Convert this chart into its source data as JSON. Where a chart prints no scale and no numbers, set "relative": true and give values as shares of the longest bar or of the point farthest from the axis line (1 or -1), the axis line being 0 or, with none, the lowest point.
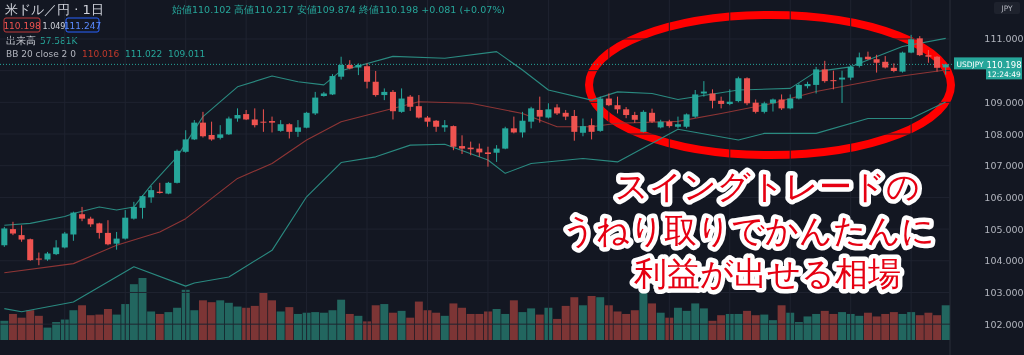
{
  "chart_data": [
    {
      "type": "candlestick",
      "title": "米ドル／円 · 1日",
      "categories": [
        null,
        null,
        null,
        null,
        null,
        null,
        null,
        null,
        null,
        null,
        null,
        null,
        null,
        null,
        null,
        null,
        null,
        null,
        null,
        null,
        null,
        null,
        null,
        null,
        null,
        null,
        null,
        null,
        null,
        null,
        null,
        null,
        null,
        null,
        null,
        null,
        null,
        null,
        null,
        null,
        null,
        null,
        null,
        null,
        null,
        null,
        null,
        null,
        null,
        null,
        null,
        null,
        null,
        null,
        null,
        null,
        null,
        null,
        null,
        null,
        null,
        null,
        null,
        null,
        null,
        null,
        null,
        null,
        null,
        null,
        null,
        null,
        null,
        null,
        null,
        null,
        null,
        null,
        null,
        null,
        null,
        null,
        null,
        null,
        null,
        null,
        null,
        null,
        null,
        null,
        null,
        null,
        null,
        null,
        null,
        null,
        null,
        null,
        null,
        null,
        null,
        null,
        null,
        null,
        null,
        null,
        null,
        null,
        null,
        null
      ],
      "ohlc": [
        [
          104.49,
          105.07,
          104.44,
          105.02
        ],
        [
          105.0,
          105.23,
          104.81,
          104.86
        ],
        [
          104.81,
          105.12,
          104.6,
          104.67
        ],
        [
          104.68,
          104.7,
          104.0,
          104.02
        ],
        [
          104.07,
          104.26,
          103.86,
          104.04
        ],
        [
          104.04,
          104.28,
          104.0,
          104.23
        ],
        [
          104.21,
          104.65,
          104.18,
          104.42
        ],
        [
          104.42,
          104.91,
          104.39,
          104.86
        ],
        [
          104.83,
          105.55,
          104.63,
          105.52
        ],
        [
          105.47,
          105.7,
          105.25,
          105.33
        ],
        [
          105.33,
          105.39,
          105.07,
          105.15
        ],
        [
          105.18,
          105.2,
          104.7,
          104.88
        ],
        [
          104.88,
          105.28,
          104.49,
          104.52
        ],
        [
          104.54,
          104.91,
          104.35,
          104.7
        ],
        [
          104.7,
          105.6,
          104.67,
          105.36
        ],
        [
          105.33,
          105.86,
          105.3,
          105.7
        ],
        [
          105.67,
          106.07,
          105.33,
          106.04
        ],
        [
          106.0,
          106.36,
          105.83,
          106.23
        ],
        [
          106.18,
          106.46,
          106.12,
          106.14
        ],
        [
          106.12,
          106.49,
          106.1,
          106.46
        ],
        [
          106.46,
          107.51,
          106.44,
          107.47
        ],
        [
          107.44,
          108.12,
          107.41,
          107.83
        ],
        [
          107.83,
          108.44,
          107.81,
          108.36
        ],
        [
          108.36,
          108.7,
          107.89,
          107.93
        ],
        [
          107.97,
          108.39,
          107.79,
          107.83
        ],
        [
          107.88,
          108.28,
          107.83,
          107.99
        ],
        [
          107.99,
          108.55,
          107.97,
          108.49
        ],
        [
          108.49,
          108.81,
          108.39,
          108.6
        ],
        [
          108.63,
          108.76,
          108.44,
          108.46
        ],
        [
          108.46,
          108.81,
          108.21,
          108.28
        ],
        [
          108.39,
          108.78,
          108.07,
          108.36
        ],
        [
          108.41,
          108.55,
          108.05,
          108.36
        ],
        [
          108.1,
          108.44,
          108.07,
          108.31
        ],
        [
          108.31,
          108.34,
          107.86,
          108.07
        ],
        [
          108.07,
          108.44,
          107.91,
          108.21
        ],
        [
          108.2,
          108.7,
          108.18,
          108.67
        ],
        [
          108.65,
          109.33,
          108.6,
          109.15
        ],
        [
          109.2,
          109.33,
          109.18,
          109.28
        ],
        [
          109.25,
          109.89,
          109.23,
          109.83
        ],
        [
          109.81,
          110.44,
          109.72,
          110.18
        ],
        [
          110.18,
          110.33,
          110.04,
          110.07
        ],
        [
          110.1,
          110.23,
          109.86,
          110.18
        ],
        [
          110.14,
          110.23,
          109.44,
          109.65
        ],
        [
          109.65,
          109.99,
          109.18,
          109.23
        ],
        [
          109.23,
          109.44,
          109.07,
          109.33
        ],
        [
          109.33,
          109.39,
          108.46,
          108.72
        ],
        [
          108.7,
          109.44,
          108.67,
          109.12
        ],
        [
          109.18,
          109.23,
          108.73,
          108.86
        ],
        [
          108.88,
          109.23,
          108.49,
          108.52
        ],
        [
          108.52,
          108.57,
          108.23,
          108.39
        ],
        [
          108.42,
          108.44,
          108.07,
          108.23
        ],
        [
          108.21,
          108.44,
          108.07,
          108.28
        ],
        [
          108.25,
          108.27,
          107.49,
          107.6
        ],
        [
          107.62,
          107.96,
          107.37,
          107.54
        ],
        [
          107.57,
          107.76,
          107.33,
          107.52
        ],
        [
          107.54,
          107.7,
          107.28,
          107.42
        ],
        [
          107.42,
          107.6,
          106.97,
          107.37
        ],
        [
          107.41,
          107.65,
          107.12,
          107.54
        ],
        [
          107.54,
          108.23,
          107.52,
          108.18
        ],
        [
          108.18,
          108.55,
          108.02,
          108.05
        ],
        [
          108.05,
          108.7,
          107.89,
          108.42
        ],
        [
          108.39,
          108.86,
          108.18,
          108.81
        ],
        [
          108.76,
          109.18,
          108.36,
          108.55
        ],
        [
          108.52,
          108.97,
          108.49,
          108.78
        ],
        [
          108.84,
          108.94,
          108.6,
          108.65
        ],
        [
          108.67,
          108.76,
          108.44,
          108.55
        ],
        [
          108.57,
          108.76,
          107.79,
          108.07
        ],
        [
          108.04,
          108.49,
          107.93,
          108.25
        ],
        [
          108.28,
          108.49,
          107.83,
          108.07
        ],
        [
          108.1,
          109.18,
          108.07,
          109.12
        ],
        [
          109.12,
          109.28,
          108.88,
          108.91
        ],
        [
          108.91,
          109.18,
          108.65,
          108.78
        ],
        [
          108.78,
          108.85,
          108.5,
          108.6
        ],
        [
          108.6,
          108.7,
          108.35,
          108.45
        ],
        [
          108.07,
          108.75,
          108.05,
          108.7
        ],
        [
          108.67,
          108.8,
          108.35,
          108.39
        ],
        [
          108.21,
          108.45,
          108.18,
          108.39
        ],
        [
          108.39,
          108.45,
          108.2,
          108.25
        ],
        [
          108.23,
          108.55,
          108.18,
          108.31
        ],
        [
          108.23,
          108.65,
          108.18,
          108.62
        ],
        [
          108.55,
          109.39,
          108.51,
          109.25
        ],
        [
          109.28,
          109.67,
          109.18,
          109.34
        ],
        [
          109.28,
          109.41,
          108.81,
          109.05
        ],
        [
          109.05,
          109.18,
          108.81,
          108.95
        ],
        [
          108.95,
          109.41,
          108.91,
          109.02
        ],
        [
          109.04,
          109.81,
          109.0,
          109.76
        ],
        [
          109.76,
          109.79,
          108.91,
          108.97
        ],
        [
          108.99,
          109.09,
          108.65,
          108.7
        ],
        [
          108.7,
          109.02,
          108.65,
          108.97
        ],
        [
          108.97,
          109.12,
          108.71,
          109.09
        ],
        [
          109.09,
          109.25,
          108.76,
          108.81
        ],
        [
          108.81,
          109.25,
          108.78,
          109.12
        ],
        [
          109.12,
          109.6,
          109.09,
          109.55
        ],
        [
          109.51,
          109.65,
          109.44,
          109.58
        ],
        [
          109.55,
          110.12,
          109.28,
          110.04
        ],
        [
          110.04,
          110.31,
          109.62,
          109.67
        ],
        [
          109.7,
          110.0,
          109.41,
          109.67
        ],
        [
          109.72,
          110.0,
          108.98,
          109.78
        ],
        [
          109.78,
          110.18,
          109.7,
          110.12
        ],
        [
          110.15,
          110.57,
          110.1,
          110.42
        ],
        [
          110.44,
          110.6,
          110.34,
          110.36
        ],
        [
          110.36,
          110.5,
          109.94,
          110.25
        ],
        [
          110.28,
          110.46,
          110.07,
          110.1
        ],
        [
          110.09,
          110.23,
          109.95,
          109.99
        ],
        [
          109.97,
          110.6,
          109.94,
          110.57
        ],
        [
          110.57,
          111.13,
          110.55,
          110.99
        ],
        [
          111.02,
          111.09,
          110.46,
          110.49
        ],
        [
          110.49,
          110.65,
          110.25,
          110.44
        ],
        [
          110.44,
          110.46,
          109.97,
          110.09
        ],
        [
          110.102,
          110.217,
          109.874,
          110.198
        ]
      ],
      "series": [
        {
          "type": "line",
          "color": "#2a8a80",
          "values": [
            105.12,
            null,
            null,
            105.18,
            null,
            null,
            null,
            105.4,
            105.49,
            null,
            null,
            105.7,
            null,
            105.6,
            null,
            105.7,
            null,
            106.39,
            null,
            null,
            107.28,
            null,
            null,
            108.55,
            null,
            null,
            null,
            109.49,
            null,
            null,
            null,
            109.83,
            null,
            null,
            109.65,
            null,
            null,
            109.55,
            null,
            110.0,
            null,
            null,
            null,
            null,
            null,
            110.45,
            null,
            null,
            null,
            null,
            null,
            110.39,
            null,
            null,
            null,
            null,
            null,
            110.6,
            null,
            null,
            110.02,
            null,
            null,
            109.39,
            null,
            null,
            null,
            null,
            109.07,
            null,
            null,
            109.33,
            null,
            null,
            null,
            109.28,
            null,
            null,
            109.09,
            null,
            null,
            null,
            null,
            null,
            null,
            109.39,
            null,
            null,
            null,
            null,
            null,
            109.44,
            null,
            null,
            109.97,
            null,
            null,
            null,
            110.12,
            null,
            null,
            null,
            null,
            null,
            110.76,
            null,
            null,
            null,
            null,
            111.02
          ]
        },
        {
          "type": "line",
          "color": "#8e3535",
          "values": [
            103.62,
            null,
            null,
            null,
            null,
            null,
            null,
            null,
            103.91,
            null,
            null,
            null,
            null,
            104.49,
            null,
            null,
            null,
            null,
            104.91,
            null,
            null,
            105.33,
            null,
            null,
            null,
            null,
            null,
            106.6,
            null,
            null,
            null,
            107.07,
            null,
            null,
            null,
            107.81,
            null,
            null,
            null,
            108.39,
            null,
            null,
            null,
            null,
            null,
            null,
            null,
            null,
            109.02,
            null,
            null,
            null,
            null,
            null,
            108.97,
            null,
            null,
            null,
            null,
            null,
            108.65,
            null,
            null,
            null,
            108.23,
            null,
            null,
            null,
            108.23,
            null,
            null,
            108.34,
            null,
            null,
            null,
            null,
            null,
            null,
            108.4,
            null,
            null,
            null,
            null,
            108.65,
            null,
            null,
            null,
            null,
            null,
            108.97,
            null,
            null,
            null,
            null,
            109.34,
            null,
            null,
            null,
            null,
            null,
            null,
            null,
            109.76,
            null,
            null,
            null,
            null,
            null,
            null,
            110.02
          ]
        },
        {
          "type": "line",
          "color": "#2a8a80",
          "values": [
            102.49,
            null,
            102.39,
            null,
            null,
            null,
            null,
            null,
            102.7,
            null,
            null,
            null,
            null,
            null,
            null,
            103.81,
            null,
            null,
            null,
            null,
            null,
            103.2,
            103.3,
            null,
            null,
            null,
            103.49,
            null,
            null,
            null,
            null,
            104.33,
            null,
            null,
            null,
            106.02,
            null,
            null,
            null,
            107.1,
            null,
            null,
            null,
            107.28,
            null,
            null,
            null,
            107.65,
            null,
            null,
            null,
            107.68,
            null,
            null,
            null,
            null,
            107.18,
            null,
            106.76,
            null,
            null,
            107.07,
            null,
            null,
            null,
            null,
            null,
            107.23,
            null,
            null,
            null,
            107.12,
            null,
            null,
            null,
            null,
            null,
            null,
            108.15,
            null,
            null,
            null,
            null,
            null,
            null,
            107.81,
            null,
            null,
            108.02,
            null,
            null,
            null,
            null,
            null,
            108.02,
            null,
            null,
            null,
            null,
            null,
            108.49,
            null,
            null,
            null,
            null,
            108.49,
            null,
            null,
            null,
            109.01
          ]
        }
      ],
      "ylim": [
        101.5,
        112.23
      ],
      "yticks": [
        {
          "value": 102,
          "label": "102.000"
        },
        {
          "value": 103,
          "label": "103.000"
        },
        {
          "value": 104,
          "label": "104.000"
        },
        {
          "value": 105,
          "label": "105.000"
        },
        {
          "value": 106,
          "label": "106.000"
        },
        {
          "value": 107,
          "label": "107.000"
        },
        {
          "value": 108,
          "label": "108.000"
        },
        {
          "value": 109,
          "label": "109.000"
        },
        {
          "value": 110,
          "label": null
        },
        {
          "value": 111,
          "label": "111.000"
        }
      ],
      "tick_labels": "y",
      "grid": true,
      "ref_lines": [
        {
          "axis": "y",
          "value": 110.198,
          "label": "USDJPY",
          "color": "#26a69a",
          "line_style": "dotted"
        }
      ],
      "annotations": [
        "始値110.102 高値110.217 安値109.874 終値110.198 +0.081 (+0.07%)",
        "110.198",
        "1.049",
        "111.247",
        "BB 20 close 2 0",
        "110.016",
        "111.022",
        "109.011",
        "110.198",
        "12:24:49",
        "JPY",
        "スイングトレードの",
        "うねり取りでかんたんに",
        "利益が出せる相場"
      ]
    },
    {
      "type": "bar",
      "title": "出来高",
      "relative": true,
      "categories": [
        null,
        null,
        null,
        null,
        null,
        null,
        null,
        null,
        null,
        null,
        null,
        null,
        null,
        null,
        null,
        null,
        null,
        null,
        null,
        null,
        null,
        null,
        null,
        null,
        null,
        null,
        null,
        null,
        null,
        null,
        null,
        null,
        null,
        null,
        null,
        null,
        null,
        null,
        null,
        null,
        null,
        null,
        null,
        null,
        null,
        null,
        null,
        null,
        null,
        null,
        null,
        null,
        null,
        null,
        null,
        null,
        null,
        null,
        null,
        null,
        null,
        null,
        null,
        null,
        null,
        null,
        null,
        null,
        null,
        null,
        null,
        null,
        null,
        null,
        null,
        null,
        null,
        null,
        null,
        null,
        null,
        null,
        null,
        null,
        null,
        null,
        null,
        null,
        null,
        null,
        null,
        null,
        null,
        null,
        null,
        null,
        null,
        null,
        null,
        null,
        null,
        null,
        null,
        null,
        null,
        null,
        null,
        null,
        null,
        null
      ],
      "values": [
        0.31,
        0.42,
        0.36,
        0.48,
        0.39,
        0.2,
        0.29,
        0.33,
        0.48,
        0.56,
        0.4,
        0.41,
        0.5,
        0.41,
        0.58,
        0.9,
        1,
        0.46,
        0.42,
        0.45,
        0.52,
        0.81,
        0.48,
        0.64,
        0.61,
        0.64,
        0.6,
        0.54,
        0.52,
        0.55,
        0.76,
        0.64,
        0.46,
        0.53,
        0.42,
        0.44,
        0.45,
        0.44,
        0.48,
        0.65,
        0.42,
        0.39,
        0.3,
        0.56,
        0.58,
        0.44,
        0.47,
        0.36,
        0.62,
        0.48,
        0.44,
        0.39,
        0.59,
        0.52,
        0.42,
        0.42,
        0.46,
        0.5,
        0.42,
        0.64,
        0.45,
        0.51,
        0.41,
        0.52,
        0.34,
        0.55,
        0.69,
        0.56,
        0.71,
        0.69,
        0.56,
        0.46,
        0.42,
        0.48,
        0.76,
        0.59,
        0.44,
        0.36,
        0.52,
        0.47,
        0.59,
        0.51,
        0.31,
        0.4,
        0.42,
        0.42,
        0.47,
        0.4,
        0.41,
        0.32,
        0.56,
        0.44,
        0.29,
        0.38,
        0.42,
        0.47,
        0.42,
        0.45,
        0.42,
        0.39,
        0.44,
        0.38,
        0.42,
        0.45,
        0.42,
        0.45,
        0.4,
        0.44,
        0.4,
        0.56
      ],
      "colors": [
        "#22665f",
        "#7c3535",
        "#7c3535",
        "#7c3535",
        "#7c3535",
        "#22665f",
        "#22665f",
        "#22665f",
        "#22665f",
        "#7c3535",
        "#7c3535",
        "#7c3535",
        "#7c3535",
        "#22665f",
        "#22665f",
        "#22665f",
        "#22665f",
        "#22665f",
        "#7c3535",
        "#22665f",
        "#22665f",
        "#22665f",
        "#22665f",
        "#7c3535",
        "#7c3535",
        "#22665f",
        "#22665f",
        "#22665f",
        "#7c3535",
        "#7c3535",
        "#7c3535",
        "#7c3535",
        "#22665f",
        "#7c3535",
        "#22665f",
        "#22665f",
        "#22665f",
        "#22665f",
        "#22665f",
        "#22665f",
        "#7c3535",
        "#22665f",
        "#7c3535",
        "#7c3535",
        "#22665f",
        "#7c3535",
        "#22665f",
        "#7c3535",
        "#7c3535",
        "#7c3535",
        "#7c3535",
        "#22665f",
        "#7c3535",
        "#7c3535",
        "#7c3535",
        "#7c3535",
        "#7c3535",
        "#22665f",
        "#22665f",
        "#7c3535",
        "#22665f",
        "#22665f",
        "#7c3535",
        "#22665f",
        "#7c3535",
        "#7c3535",
        "#7c3535",
        "#22665f",
        "#7c3535",
        "#22665f",
        "#7c3535",
        "#7c3535",
        "#7c3535",
        "#7c3535",
        "#22665f",
        "#7c3535",
        "#22665f",
        "#7c3535",
        "#22665f",
        "#22665f",
        "#22665f",
        "#22665f",
        "#7c3535",
        "#7c3535",
        "#22665f",
        "#22665f",
        "#7c3535",
        "#7c3535",
        "#22665f",
        "#22665f",
        "#7c3535",
        "#22665f",
        "#22665f",
        "#22665f",
        "#22665f",
        "#7c3535",
        "#7c3535",
        "#22665f",
        "#22665f",
        "#22665f",
        "#7c3535",
        "#7c3535",
        "#7c3535",
        "#7c3535",
        "#22665f",
        "#22665f",
        "#7c3535",
        "#7c3535",
        "#7c3535",
        "#22665f"
      ],
      "annotations": [
        "57.581K"
      ]
    }
  ]
}
